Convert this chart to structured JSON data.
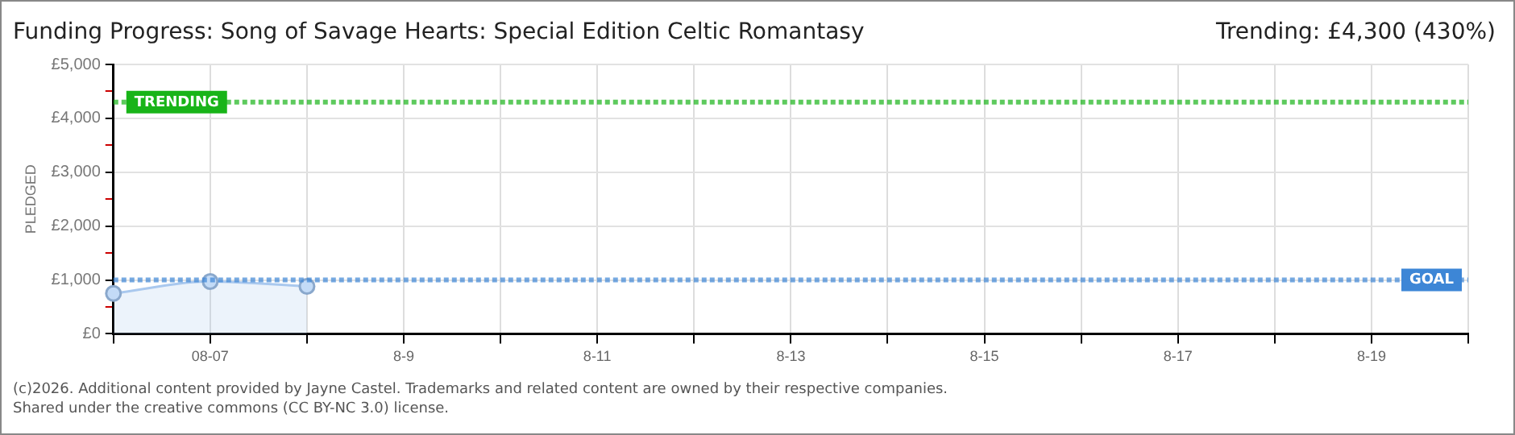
{
  "chart_data": {
    "type": "area",
    "title": "Funding Progress: Song of Savage Hearts: Special Edition Celtic Romantasy",
    "subtitle": "Trending: £4,300 (430%)",
    "ylabel": "PLEDGED",
    "categories": [
      null,
      "08-07",
      null,
      "8-9",
      null,
      "8-11",
      null,
      "8-13",
      null,
      "8-15",
      null,
      "8-17",
      null,
      "8-19",
      null
    ],
    "series": [
      {
        "color": "#a9c8ee",
        "values": [
          750,
          970,
          880,
          null,
          null,
          null,
          null,
          null,
          null,
          null,
          null,
          null,
          null,
          null,
          null
        ]
      }
    ],
    "ylim": [
      0,
      5000
    ],
    "yticks": [
      {
        "value": 0,
        "label": "£0"
      },
      {
        "value": 500,
        "label": null
      },
      {
        "value": 1000,
        "label": "£1,000"
      },
      {
        "value": 1500,
        "label": null
      },
      {
        "value": 2000,
        "label": "£2,000"
      },
      {
        "value": 2500,
        "label": null
      },
      {
        "value": 3000,
        "label": "£3,000"
      },
      {
        "value": 3500,
        "label": null
      },
      {
        "value": 4000,
        "label": "£4,000"
      },
      {
        "value": 4500,
        "label": null
      },
      {
        "value": 5000,
        "label": "£5,000"
      }
    ],
    "grid": true,
    "marker": "circle",
    "legend": false,
    "ref_lines": [
      {
        "axis": "y",
        "value": 1000,
        "label": "GOAL",
        "color": "#3d86d6",
        "line_style": "dotted"
      },
      {
        "axis": "y",
        "value": 4300,
        "label": "TRENDING",
        "color": "#18b418",
        "line_style": "dotted"
      }
    ],
    "annotations": [
      "(c)2026. Additional content provided by Jayne Castel. Trademarks and related content are owned by their respective companies.",
      "Shared under the creative commons (CC BY-NC 3.0) license."
    ]
  }
}
